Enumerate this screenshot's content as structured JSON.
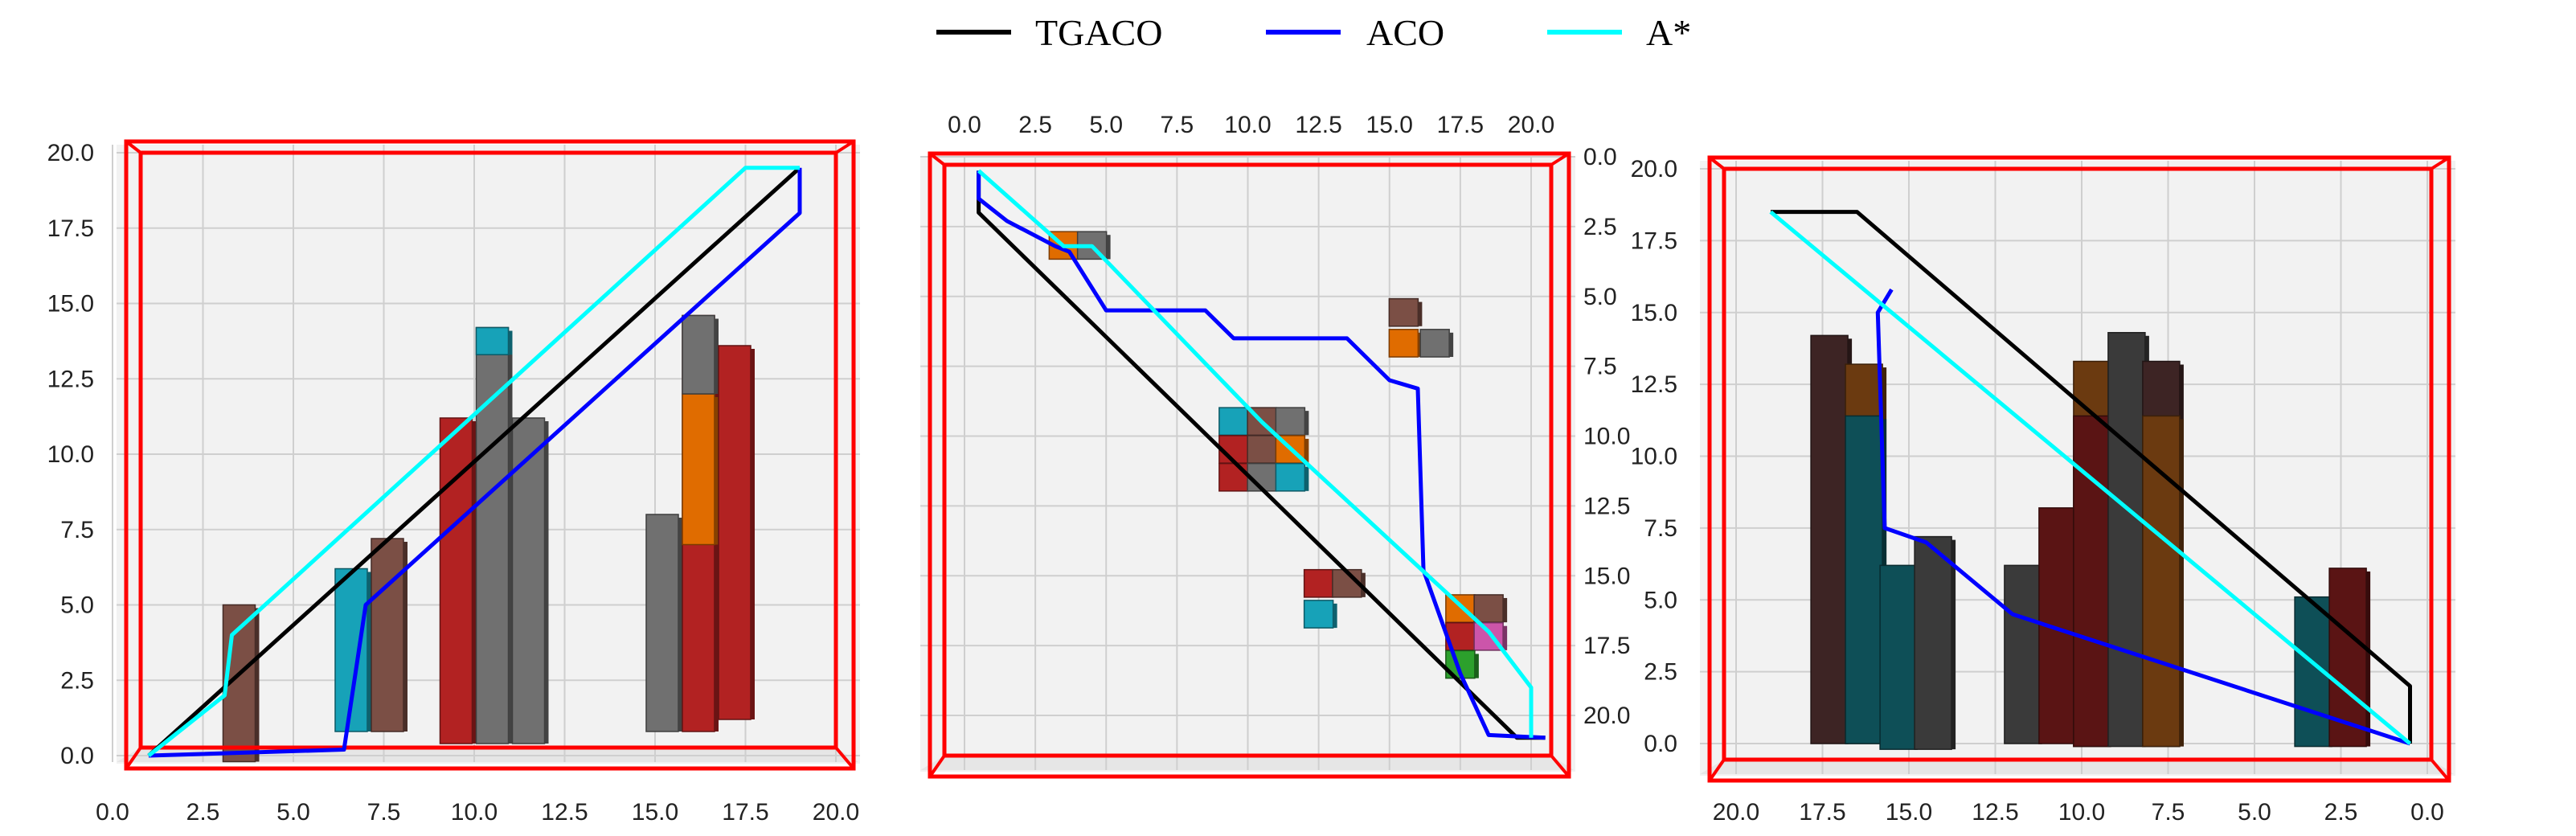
{
  "legend": [
    {
      "label": "TGACO",
      "color": "#000000"
    },
    {
      "label": "ACO",
      "color": "#0000ff"
    },
    {
      "label": "A*",
      "color": "#00ffff"
    }
  ],
  "chart_data": [
    {
      "type": "line",
      "view": "front",
      "title": "",
      "x_ticks": [
        "0.0",
        "2.5",
        "5.0",
        "7.5",
        "10.0",
        "12.5",
        "15.0",
        "17.5",
        "20.0"
      ],
      "y_ticks": [
        "0.0",
        "2.5",
        "5.0",
        "7.5",
        "10.0",
        "12.5",
        "15.0",
        "17.5",
        "20.0"
      ],
      "xlim": [
        0,
        20
      ],
      "ylim": [
        0,
        20
      ],
      "grid": true,
      "bounding_box_color": "#ff0000",
      "series": [
        {
          "name": "TGACO",
          "color": "#000000",
          "x": [
            1,
            19
          ],
          "y": [
            0,
            19.5
          ]
        },
        {
          "name": "ACO",
          "color": "#0000ff",
          "x": [
            1,
            6.4,
            7,
            19,
            19
          ],
          "y": [
            0,
            0.2,
            5,
            18,
            19.5
          ]
        },
        {
          "name": "A*",
          "color": "#00ffff",
          "x": [
            1,
            3.1,
            3.3,
            17.5,
            19
          ],
          "y": [
            0,
            2,
            4,
            19.5,
            19.5
          ]
        }
      ],
      "obstacles": [
        {
          "x": 3.5,
          "y0": -0.2,
          "y1": 5.0,
          "color": "#7b4f45"
        },
        {
          "x": 6.6,
          "y0": 0.8,
          "y1": 6.2,
          "color": "#17a2b8"
        },
        {
          "x": 7.6,
          "y0": 0.8,
          "y1": 7.2,
          "color": "#7b4f45"
        },
        {
          "x": 9.5,
          "y0": 0.4,
          "y1": 11.2,
          "color": "#b22222"
        },
        {
          "x": 10.5,
          "y0": 0.4,
          "y1": 14.2,
          "color": "#707070"
        },
        {
          "x": 10.5,
          "y0": 13.3,
          "y1": 14.2,
          "color": "#17a2b8"
        },
        {
          "x": 11.5,
          "y0": 0.4,
          "y1": 11.2,
          "color": "#707070"
        },
        {
          "x": 15.2,
          "y0": 0.8,
          "y1": 8.0,
          "color": "#707070"
        },
        {
          "x": 16.2,
          "y0": 0.8,
          "y1": 14.6,
          "color": "#b22222"
        },
        {
          "x": 16.2,
          "y0": 7.0,
          "y1": 12.0,
          "color": "#e06c00"
        },
        {
          "x": 16.2,
          "y0": 12.0,
          "y1": 14.6,
          "color": "#707070"
        },
        {
          "x": 17.2,
          "y0": 1.2,
          "y1": 13.6,
          "color": "#b22222"
        }
      ]
    },
    {
      "type": "line",
      "view": "top",
      "title": "",
      "x_ticks": [
        "0.0",
        "2.5",
        "5.0",
        "7.5",
        "10.0",
        "12.5",
        "15.0",
        "17.5",
        "20.0"
      ],
      "y_ticks": [
        "0.0",
        "2.5",
        "5.0",
        "7.5",
        "10.0",
        "12.5",
        "15.0",
        "17.5",
        "20.0"
      ],
      "xlim": [
        0,
        20
      ],
      "ylim": [
        0,
        20
      ],
      "grid": true,
      "bounding_box_color": "#ff0000",
      "series": [
        {
          "name": "TGACO",
          "color": "#000000",
          "x": [
            0.5,
            0.5,
            19.5,
            20.5
          ],
          "y": [
            0.5,
            2.0,
            20.8,
            20.8
          ]
        },
        {
          "name": "ACO",
          "color": "#0000ff",
          "x": [
            0.5,
            0.5,
            1.5,
            3.2,
            3.7,
            5.0,
            8.5,
            9.5,
            13.5,
            15.0,
            16.0,
            16.2,
            17.5,
            18.5,
            20.5
          ],
          "y": [
            0.5,
            1.5,
            2.3,
            3.2,
            3.4,
            5.5,
            5.5,
            6.5,
            6.5,
            8.0,
            8.3,
            14.8,
            18.5,
            20.7,
            20.8
          ]
        },
        {
          "name": "A*",
          "color": "#00ffff",
          "x": [
            0.5,
            3.5,
            4.5,
            10.5,
            18.5,
            20.0,
            20.0
          ],
          "y": [
            0.5,
            3.2,
            3.2,
            9.5,
            17.0,
            19.0,
            20.8
          ]
        }
      ],
      "obstacles": [
        {
          "x": 3.5,
          "y": 3.2,
          "color": "#e06c00"
        },
        {
          "x": 4.5,
          "y": 3.2,
          "color": "#707070"
        },
        {
          "x": 15.5,
          "y": 5.6,
          "color": "#7b4f45"
        },
        {
          "x": 15.5,
          "y": 6.7,
          "color": "#e06c00"
        },
        {
          "x": 16.6,
          "y": 6.7,
          "color": "#707070"
        },
        {
          "x": 9.5,
          "y": 9.5,
          "color": "#17a2b8"
        },
        {
          "x": 10.5,
          "y": 9.5,
          "color": "#7b4f45"
        },
        {
          "x": 11.5,
          "y": 9.5,
          "color": "#707070"
        },
        {
          "x": 9.5,
          "y": 10.5,
          "color": "#b22222"
        },
        {
          "x": 10.5,
          "y": 10.5,
          "color": "#7b4f45"
        },
        {
          "x": 11.5,
          "y": 10.5,
          "color": "#e06c00"
        },
        {
          "x": 9.5,
          "y": 11.5,
          "color": "#b22222"
        },
        {
          "x": 10.5,
          "y": 11.5,
          "color": "#707070"
        },
        {
          "x": 11.5,
          "y": 11.5,
          "color": "#17a2b8"
        },
        {
          "x": 12.5,
          "y": 15.3,
          "color": "#b22222"
        },
        {
          "x": 13.5,
          "y": 15.3,
          "color": "#7b4f45"
        },
        {
          "x": 12.5,
          "y": 16.4,
          "color": "#17a2b8"
        },
        {
          "x": 17.5,
          "y": 16.2,
          "color": "#e06c00"
        },
        {
          "x": 18.5,
          "y": 16.2,
          "color": "#7b4f45"
        },
        {
          "x": 17.5,
          "y": 17.2,
          "color": "#b22222"
        },
        {
          "x": 18.5,
          "y": 17.2,
          "color": "#cc55aa"
        },
        {
          "x": 17.5,
          "y": 18.2,
          "color": "#2ca02c"
        }
      ]
    },
    {
      "type": "line",
      "view": "back",
      "title": "",
      "x_ticks": [
        "20.0",
        "17.5",
        "15.0",
        "12.5",
        "10.0",
        "7.5",
        "5.0",
        "2.5",
        "0.0"
      ],
      "y_ticks": [
        "0.0",
        "2.5",
        "5.0",
        "7.5",
        "10.0",
        "12.5",
        "15.0",
        "17.5",
        "20.0"
      ],
      "xlim": [
        20,
        0
      ],
      "ylim": [
        0,
        20
      ],
      "grid": true,
      "bounding_box_color": "#ff0000",
      "series": [
        {
          "name": "TGACO",
          "color": "#000000",
          "x": [
            19,
            16.5,
            0.5,
            0.5
          ],
          "y": [
            18.5,
            18.5,
            2.0,
            0
          ]
        },
        {
          "name": "ACO",
          "color": "#0000ff",
          "x": [
            15.5,
            15.9,
            15.7,
            14.5,
            12.0,
            0.5
          ],
          "y": [
            15.8,
            15.0,
            7.5,
            7.0,
            4.5,
            0
          ]
        },
        {
          "name": "A*",
          "color": "#00ffff",
          "x": [
            19,
            0.5
          ],
          "y": [
            18.5,
            0
          ]
        }
      ],
      "obstacles": [
        {
          "x": 17.3,
          "y0": 0,
          "y1": 14.2,
          "color": "#3d2424"
        },
        {
          "x": 16.3,
          "y0": 0,
          "y1": 13.2,
          "color": "#6b3a10"
        },
        {
          "x": 16.3,
          "y0": 0,
          "y1": 11.4,
          "color": "#0e4f57"
        },
        {
          "x": 15.3,
          "y0": -0.2,
          "y1": 6.2,
          "color": "#0e4f57"
        },
        {
          "x": 14.3,
          "y0": -0.2,
          "y1": 7.2,
          "color": "#3a3a3a"
        },
        {
          "x": 11.7,
          "y0": 0,
          "y1": 6.2,
          "color": "#3a3a3a"
        },
        {
          "x": 10.7,
          "y0": 0,
          "y1": 8.2,
          "color": "#5a1414"
        },
        {
          "x": 9.7,
          "y0": -0.1,
          "y1": 13.3,
          "color": "#6b3a10"
        },
        {
          "x": 9.7,
          "y0": -0.1,
          "y1": 11.4,
          "color": "#5a1414"
        },
        {
          "x": 8.7,
          "y0": -0.1,
          "y1": 14.3,
          "color": "#3a3a3a"
        },
        {
          "x": 7.7,
          "y0": -0.1,
          "y1": 13.3,
          "color": "#3d2424"
        },
        {
          "x": 7.7,
          "y0": -0.1,
          "y1": 11.4,
          "color": "#6b3a10"
        },
        {
          "x": 3.3,
          "y0": -0.1,
          "y1": 5.1,
          "color": "#0e4f57"
        },
        {
          "x": 2.3,
          "y0": -0.1,
          "y1": 6.1,
          "color": "#5a1414"
        }
      ]
    }
  ]
}
